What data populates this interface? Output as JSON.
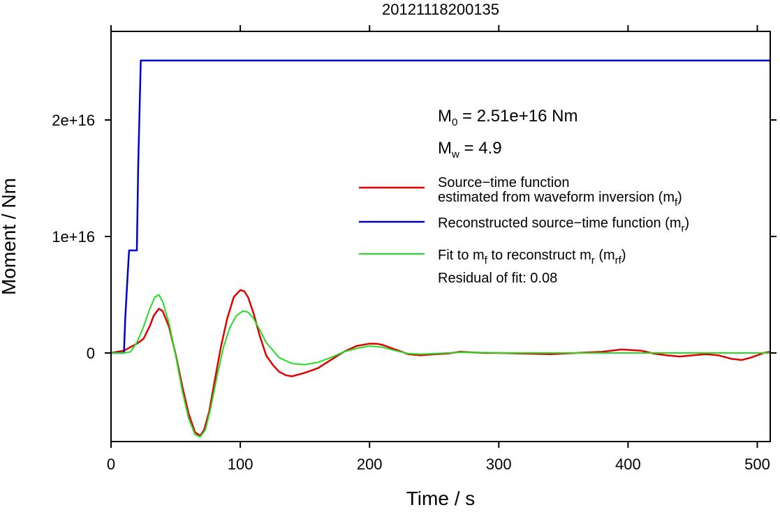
{
  "chart_data": {
    "type": "line",
    "title": "20121118200135",
    "xlabel": "Time / s",
    "ylabel": "Moment / Nm",
    "xlim": [
      0,
      510
    ],
    "ylim": [
      -7600000000000000.0,
      2.76e+16
    ],
    "x_ticks": [
      0,
      100,
      200,
      300,
      400,
      500
    ],
    "x_tick_labels": [
      "0",
      "100",
      "200",
      "300",
      "400",
      "500"
    ],
    "y_ticks": [
      0,
      1e+16,
      2e+16
    ],
    "y_tick_labels": [
      "0",
      "1e+16",
      "2e+16"
    ],
    "grid": false,
    "legend_position": "right",
    "annotations": {
      "m0": {
        "base": "M",
        "sub": "0",
        "rest": " = 2.51e+16 Nm"
      },
      "mw": {
        "base": "M",
        "sub": "w",
        "rest": " = 4.9"
      },
      "residual": "Residual of fit: 0.08"
    },
    "legend": [
      {
        "color": "#e00000",
        "lines": [
          [
            {
              "t": "Source−time function"
            }
          ],
          [
            {
              "t": "estimated from waveform inversion (m"
            },
            {
              "t": "f",
              "sub": true
            },
            {
              "t": ")"
            }
          ]
        ]
      },
      {
        "color": "#0000cc",
        "lines": [
          [
            {
              "t": "Reconstructed source−time function (m"
            },
            {
              "t": "r",
              "sub": true
            },
            {
              "t": ")"
            }
          ]
        ]
      },
      {
        "color": "#22dd22",
        "lines": [
          [
            {
              "t": "Fit to m"
            },
            {
              "t": "f",
              "sub": true
            },
            {
              "t": " to reconstruct m"
            },
            {
              "t": "r",
              "sub": true
            },
            {
              "t": " (m"
            },
            {
              "t": "rf",
              "sub": true
            },
            {
              "t": ")"
            }
          ]
        ]
      }
    ],
    "series": [
      {
        "color": "#e00000",
        "x": [
          0,
          5,
          10,
          15,
          20,
          25,
          30,
          33,
          37,
          40,
          45,
          50,
          55,
          60,
          65,
          69,
          72,
          76,
          80,
          85,
          90,
          95,
          100,
          103,
          106,
          110,
          115,
          120,
          125,
          130,
          135,
          140,
          150,
          160,
          170,
          180,
          190,
          200,
          205,
          210,
          220,
          230,
          240,
          250,
          260,
          270,
          280,
          290,
          300,
          320,
          340,
          350,
          360,
          380,
          395,
          410,
          420,
          430,
          440,
          450,
          460,
          470,
          480,
          488,
          495,
          505,
          510
        ],
        "y": [
          0,
          100000000000000.0,
          200000000000000.0,
          500000000000000.0,
          800000000000000.0,
          1200000000000000.0,
          2300000000000000.0,
          3200000000000000.0,
          3800000000000000.0,
          3600000000000000.0,
          2200000000000000.0,
          -100000000000000.0,
          -2800000000000000.0,
          -5200000000000000.0,
          -6800000000000000.0,
          -7100000000000000.0,
          -6600000000000000.0,
          -5000000000000000.0,
          -2500000000000000.0,
          500000000000000.0,
          3000000000000000.0,
          4800000000000000.0,
          5400000000000000.0,
          5300000000000000.0,
          4800000000000000.0,
          3500000000000000.0,
          1500000000000000.0,
          -200000000000000.0,
          -1000000000000000.0,
          -1600000000000000.0,
          -1900000000000000.0,
          -2000000000000000.0,
          -1700000000000000.0,
          -1300000000000000.0,
          -600000000000000.0,
          100000000000000.0,
          600000000000000.0,
          800000000000000.0,
          800000000000000.0,
          700000000000000.0,
          300000000000000.0,
          -100000000000000.0,
          -200000000000000.0,
          -100000000000000.0,
          -50000000000000.0,
          100000000000000.0,
          50000000000000.0,
          0,
          0,
          -50000000000000.0,
          -100000000000000.0,
          -50000000000000.0,
          0,
          100000000000000.0,
          300000000000000.0,
          200000000000000.0,
          -50000000000000.0,
          -200000000000000.0,
          -300000000000000.0,
          -200000000000000.0,
          -100000000000000.0,
          -200000000000000.0,
          -500000000000000.0,
          -600000000000000.0,
          -400000000000000.0,
          0,
          100000000000000.0
        ]
      },
      {
        "color": "#0000cc",
        "x": [
          0,
          10,
          11,
          13,
          14,
          15,
          17,
          20,
          21,
          23,
          510
        ],
        "y": [
          0,
          0,
          3000000000000000.0,
          7000000000000000.0,
          8800000000000000.0,
          8800000000000000.0,
          8800000000000000.0,
          8800000000000000.0,
          1.6e+16,
          2.51e+16,
          2.51e+16
        ]
      },
      {
        "color": "#22dd22",
        "x": [
          0,
          10,
          15,
          20,
          25,
          30,
          34,
          37,
          40,
          45,
          50,
          55,
          60,
          65,
          69,
          73,
          77,
          82,
          87,
          92,
          97,
          102,
          106,
          110,
          115,
          120,
          130,
          140,
          150,
          160,
          170,
          180,
          190,
          200,
          210,
          220,
          230,
          240,
          250,
          260,
          270,
          280,
          290,
          300,
          350,
          400,
          450,
          510
        ],
        "y": [
          0,
          0,
          100000000000000.0,
          900000000000000.0,
          2200000000000000.0,
          3800000000000000.0,
          4800000000000000.0,
          5000000000000000.0,
          4400000000000000.0,
          2500000000000000.0,
          -200000000000000.0,
          -3200000000000000.0,
          -5600000000000000.0,
          -7000000000000000.0,
          -7200000000000000.0,
          -6600000000000000.0,
          -4800000000000000.0,
          -2000000000000000.0,
          500000000000000.0,
          2200000000000000.0,
          3200000000000000.0,
          3600000000000000.0,
          3500000000000000.0,
          3000000000000000.0,
          2000000000000000.0,
          900000000000000.0,
          -400000000000000.0,
          -900000000000000.0,
          -1000000000000000.0,
          -800000000000000.0,
          -400000000000000.0,
          100000000000000.0,
          400000000000000.0,
          600000000000000.0,
          500000000000000.0,
          200000000000000.0,
          -50000000000000.0,
          -100000000000000.0,
          -50000000000000.0,
          0,
          50000000000000.0,
          50000000000000.0,
          30000000000000.0,
          0,
          0,
          0,
          0,
          0
        ]
      }
    ]
  }
}
